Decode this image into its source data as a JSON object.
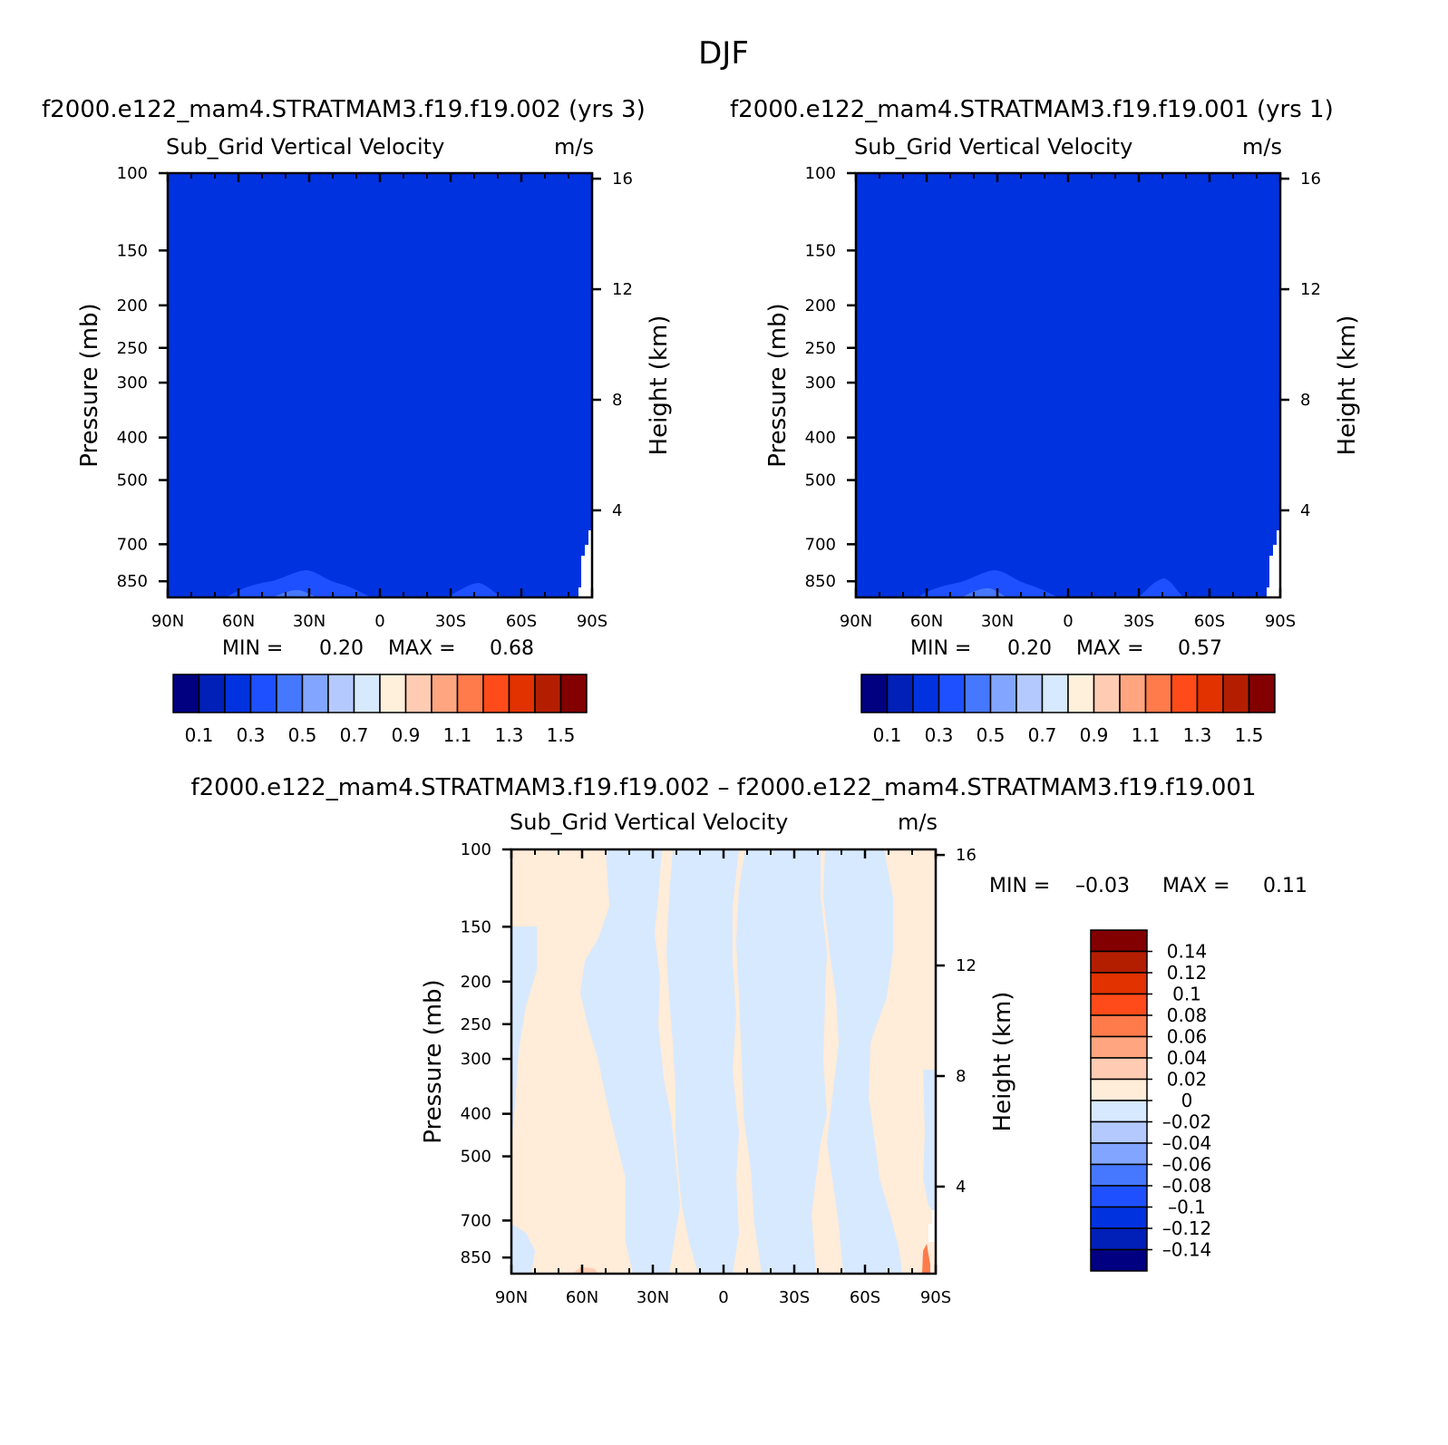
{
  "figure_title": "DJF",
  "colors": {
    "abs_levels": [
      "#000080",
      "#0020b8",
      "#0032e0",
      "#1e50ff",
      "#4678ff",
      "#82a5ff",
      "#b4caff",
      "#d7e9ff",
      "#fff0dc",
      "#ffccb3",
      "#ffa580",
      "#ff7b4c",
      "#ff4b19",
      "#e13200",
      "#b41e00",
      "#820000"
    ],
    "diff_levels": [
      "#000080",
      "#0020b8",
      "#0032e0",
      "#1e50ff",
      "#4678ff",
      "#82a5ff",
      "#b4caff",
      "#d7e9ff",
      "#ffecd9",
      "#ffccb3",
      "#ffa580",
      "#ff7b4c",
      "#ff4b19",
      "#e13200",
      "#b41e00",
      "#820000"
    ]
  },
  "panels": [
    {
      "case_title": "f2000.e122_mam4.STRATMAM3.f19.f19.002 (yrs 3)",
      "variable": "Sub_Grid Vertical Velocity",
      "units": "m/s",
      "ylabel_left": "Pressure (mb)",
      "ylabel_right": "Height (km)",
      "min_label": "MIN =",
      "min_value": "0.20",
      "max_label": "MAX =",
      "max_value": "0.68"
    },
    {
      "case_title": "f2000.e122_mam4.STRATMAM3.f19.f19.001 (yrs 1)",
      "variable": "Sub_Grid Vertical Velocity",
      "units": "m/s",
      "ylabel_left": "Pressure (mb)",
      "ylabel_right": "Height (km)",
      "min_label": "MIN =",
      "min_value": "0.20",
      "max_label": "MAX =",
      "max_value": "0.57"
    },
    {
      "case_title": "f2000.e122_mam4.STRATMAM3.f19.f19.002 – f2000.e122_mam4.STRATMAM3.f19.f19.001",
      "variable": "Sub_Grid Vertical Velocity",
      "units": "m/s",
      "ylabel_left": "Pressure (mb)",
      "ylabel_right": "Height (km)",
      "min_label": "MIN =",
      "min_value": "–0.03",
      "max_label": "MAX =",
      "max_value": "0.11"
    }
  ],
  "chart_data": [
    {
      "type": "heatmap",
      "title": "Sub_Grid Vertical Velocity",
      "units": "m/s",
      "x_ticks": [
        "90N",
        "60N",
        "30N",
        "0",
        "30S",
        "60S",
        "90S"
      ],
      "x_tick_values": [
        90,
        60,
        30,
        0,
        -30,
        -60,
        -90
      ],
      "y_ticks": [
        "100",
        "150",
        "200",
        "250",
        "300",
        "400",
        "500",
        "700",
        "850"
      ],
      "y_tick_values": [
        100,
        150,
        200,
        250,
        300,
        400,
        500,
        700,
        850
      ],
      "y_scale": "log",
      "y_right_ticks": [
        "16",
        "12",
        "8",
        "4"
      ],
      "y_right_tick_values": [
        16,
        12,
        8,
        4
      ],
      "xlim": [
        90,
        -90
      ],
      "ylim": [
        100,
        925
      ],
      "colorbar_labels": [
        "0.1",
        "0.3",
        "0.5",
        "0.7",
        "0.9",
        "1.1",
        "1.3",
        "1.5"
      ],
      "dominant_value": 0.2,
      "min": 0.2,
      "max": 0.68
    },
    {
      "type": "heatmap",
      "title": "Sub_Grid Vertical Velocity",
      "units": "m/s",
      "x_ticks": [
        "90N",
        "60N",
        "30N",
        "0",
        "30S",
        "60S",
        "90S"
      ],
      "x_tick_values": [
        90,
        60,
        30,
        0,
        -30,
        -60,
        -90
      ],
      "y_ticks": [
        "100",
        "150",
        "200",
        "250",
        "300",
        "400",
        "500",
        "700",
        "850"
      ],
      "y_tick_values": [
        100,
        150,
        200,
        250,
        300,
        400,
        500,
        700,
        850
      ],
      "y_scale": "log",
      "y_right_ticks": [
        "16",
        "12",
        "8",
        "4"
      ],
      "y_right_tick_values": [
        16,
        12,
        8,
        4
      ],
      "xlim": [
        90,
        -90
      ],
      "ylim": [
        100,
        925
      ],
      "colorbar_labels": [
        "0.1",
        "0.3",
        "0.5",
        "0.7",
        "0.9",
        "1.1",
        "1.3",
        "1.5"
      ],
      "dominant_value": 0.2,
      "min": 0.2,
      "max": 0.57
    },
    {
      "type": "heatmap",
      "title": "Sub_Grid Vertical Velocity",
      "units": "m/s",
      "x_ticks": [
        "90N",
        "60N",
        "30N",
        "0",
        "30S",
        "60S",
        "90S"
      ],
      "x_tick_values": [
        90,
        60,
        30,
        0,
        -30,
        -60,
        -90
      ],
      "y_ticks": [
        "100",
        "150",
        "200",
        "250",
        "300",
        "400",
        "500",
        "700",
        "850"
      ],
      "y_tick_values": [
        100,
        150,
        200,
        250,
        300,
        400,
        500,
        700,
        850
      ],
      "y_scale": "log",
      "y_right_ticks": [
        "16",
        "12",
        "8",
        "4"
      ],
      "y_right_tick_values": [
        16,
        12,
        8,
        4
      ],
      "xlim": [
        90,
        -90
      ],
      "ylim": [
        100,
        925
      ],
      "colorbar_labels": [
        "0.14",
        "0.12",
        "0.1",
        "0.08",
        "0.06",
        "0.04",
        "0.02",
        "0",
        "–0.02",
        "–0.04",
        "–0.06",
        "–0.08",
        "–0.1",
        "–0.12",
        "–0.14"
      ],
      "min": -0.03,
      "max": 0.11
    }
  ]
}
